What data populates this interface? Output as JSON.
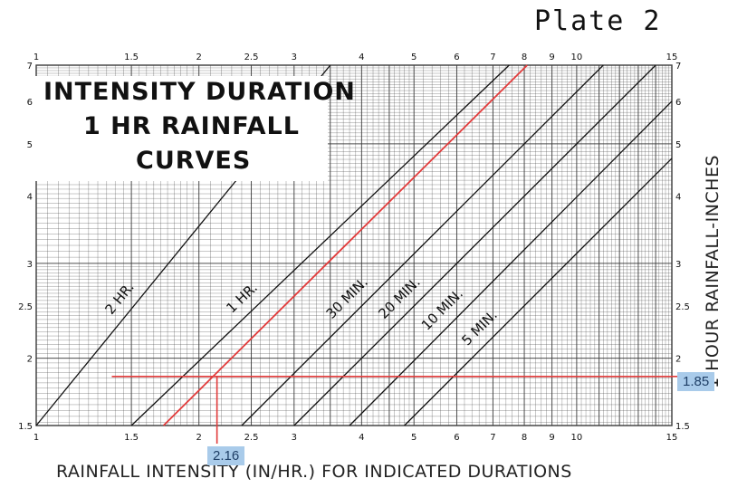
{
  "plate": "Plate 2",
  "title": {
    "line1": "INTENSITY DURATION",
    "line2": "1 HR RAINFALL",
    "line3": "CURVES"
  },
  "x_title": "RAINFALL INTENSITY (IN/HR.) FOR INDICATED DURATIONS",
  "y_title": "1 HOUR RAINFALL-INCHES",
  "annotations": {
    "y_read": "1.85",
    "x_read": "2.16"
  },
  "colors": {
    "grid": "#3a3a3a",
    "curve": "#111111",
    "highlight": "#e23b3b",
    "tag": "#a9cbea"
  },
  "chart_data": {
    "type": "line",
    "x_scale": "log",
    "y_scale": "log",
    "xlim": [
      1,
      15
    ],
    "ylim": [
      1.5,
      7
    ],
    "x_ticks": [
      {
        "v": 1,
        "label": "1"
      },
      {
        "v": 1.5,
        "label": "1.5"
      },
      {
        "v": 2,
        "label": "2"
      },
      {
        "v": 2.5,
        "label": "2.5"
      },
      {
        "v": 3,
        "label": "3"
      },
      {
        "v": 4,
        "label": "4"
      },
      {
        "v": 5,
        "label": "5"
      },
      {
        "v": 6,
        "label": "6"
      },
      {
        "v": 7,
        "label": "7"
      },
      {
        "v": 8,
        "label": "8"
      },
      {
        "v": 9,
        "label": "9"
      },
      {
        "v": 10,
        "label": "10"
      },
      {
        "v": 15,
        "label": "15"
      }
    ],
    "y_ticks": [
      {
        "v": 1.5,
        "label": "1.5"
      },
      {
        "v": 2,
        "label": "2"
      },
      {
        "v": 2.5,
        "label": "2.5"
      },
      {
        "v": 3,
        "label": "3"
      },
      {
        "v": 4,
        "label": "4"
      },
      {
        "v": 5,
        "label": "5"
      },
      {
        "v": 6,
        "label": "6"
      },
      {
        "v": 7,
        "label": "7"
      }
    ],
    "series": [
      {
        "name": "2 HR.",
        "x": [
          1,
          3.5
        ],
        "y": [
          1.5,
          7
        ]
      },
      {
        "name": "1 HR.",
        "x": [
          1.5,
          7.5
        ],
        "y": [
          1.5,
          7
        ]
      },
      {
        "name": "30 MIN.",
        "x": [
          2.4,
          11.2
        ],
        "y": [
          1.5,
          7
        ]
      },
      {
        "name": "20 MIN.",
        "x": [
          3.0,
          14.0
        ],
        "y": [
          1.5,
          7
        ]
      },
      {
        "name": "10 MIN.",
        "x": [
          3.8,
          15
        ],
        "y": [
          1.5,
          6.0
        ]
      },
      {
        "name": "5 MIN.",
        "x": [
          4.8,
          15
        ],
        "y": [
          1.5,
          4.7
        ]
      }
    ],
    "highlight_line": {
      "x": [
        1.72,
        8.1
      ],
      "y": [
        1.5,
        7
      ]
    },
    "reading": {
      "rainfall": 1.85,
      "intensity": 2.16
    }
  }
}
